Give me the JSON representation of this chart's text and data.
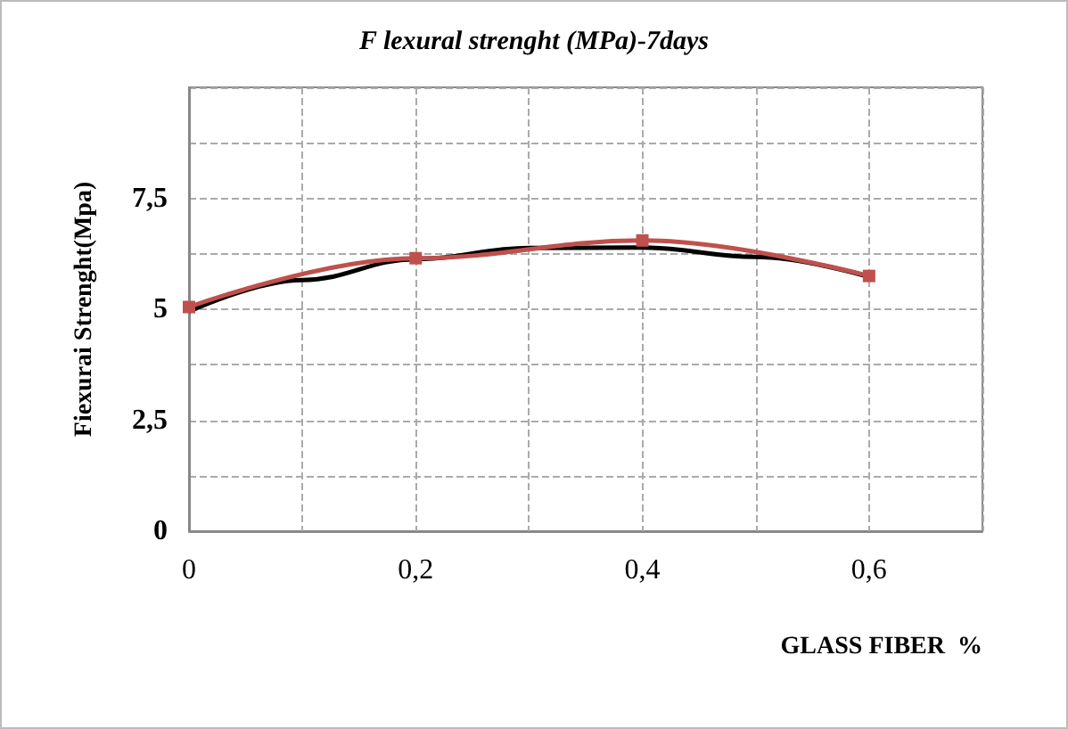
{
  "chart_data": {
    "type": "line",
    "title": "F lexural strenght (MPa)-7days",
    "xlabel": "GLASS FIBER  %",
    "ylabel": "Fiexurai Strenght(Mpa)",
    "x": [
      0,
      0.2,
      0.4,
      0.6
    ],
    "series": [
      {
        "color": "#c0504d",
        "values": [
          5.05,
          6.15,
          6.55,
          5.75
        ],
        "marker": "square"
      },
      {
        "type": "line",
        "color": "#000000",
        "x": [
          0,
          0.1,
          0.2,
          0.3,
          0.4,
          0.5,
          0.6
        ],
        "values": [
          4.95,
          5.66,
          6.13,
          6.38,
          6.39,
          6.18,
          5.73
        ],
        "marker": "none"
      }
    ],
    "xlim": [
      0,
      0.7
    ],
    "xticks": [
      0,
      {
        "value": 0.1,
        "label": null
      },
      {
        "value": 0.2,
        "label": "0,2"
      },
      {
        "value": 0.3,
        "label": null
      },
      {
        "value": 0.4,
        "label": "0,4"
      },
      {
        "value": 0.5,
        "label": null
      },
      {
        "value": 0.6,
        "label": "0,6"
      },
      {
        "value": 0.7,
        "label": null
      }
    ],
    "ylim": [
      0,
      10
    ],
    "yticks": [
      0,
      {
        "value": 1.25,
        "label": null
      },
      {
        "value": 2.5,
        "label": "2,5"
      },
      {
        "value": 3.75,
        "label": null
      },
      5,
      {
        "value": 6.25,
        "label": null
      },
      {
        "value": 7.5,
        "label": "7,5"
      },
      {
        "value": 8.75,
        "label": null
      },
      {
        "value": 10,
        "label": null
      }
    ],
    "grid": true
  }
}
